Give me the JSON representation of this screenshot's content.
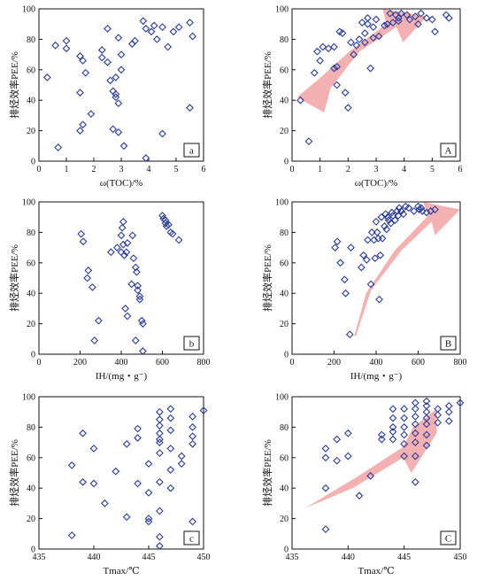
{
  "colors": {
    "marker": "#2b3d9a",
    "arrow": "#f2a3a3",
    "axis": "#111111"
  },
  "chart_data": [
    {
      "type": "scatter",
      "id": "a",
      "panel_label": "a",
      "xlabel": "ω(TOC)/%",
      "ylabel": "排烃效率PEE/%",
      "xlim": [
        0,
        6
      ],
      "ylim": [
        0,
        100
      ],
      "xticks": [
        "0",
        "1",
        "2",
        "3",
        "4",
        "5",
        "6"
      ],
      "yticks": [
        "0",
        "20",
        "40",
        "60",
        "80",
        "100"
      ],
      "arrow": false,
      "points": [
        [
          0.3,
          55
        ],
        [
          0.7,
          9
        ],
        [
          0.6,
          76
        ],
        [
          1.0,
          79
        ],
        [
          1.0,
          74
        ],
        [
          1.5,
          69
        ],
        [
          1.6,
          66
        ],
        [
          1.5,
          45
        ],
        [
          1.7,
          58
        ],
        [
          1.5,
          20
        ],
        [
          1.6,
          24
        ],
        [
          1.9,
          31
        ],
        [
          2.3,
          68
        ],
        [
          2.3,
          73
        ],
        [
          2.5,
          87
        ],
        [
          2.5,
          65
        ],
        [
          2.6,
          53
        ],
        [
          2.7,
          46
        ],
        [
          2.7,
          21
        ],
        [
          2.8,
          44
        ],
        [
          2.9,
          81
        ],
        [
          2.8,
          55
        ],
        [
          2.8,
          42
        ],
        [
          2.9,
          19
        ],
        [
          2.9,
          38
        ],
        [
          3.0,
          70
        ],
        [
          3.0,
          60
        ],
        [
          3.1,
          10
        ],
        [
          3.4,
          77
        ],
        [
          3.5,
          79
        ],
        [
          3.8,
          92
        ],
        [
          3.9,
          87
        ],
        [
          3.9,
          2
        ],
        [
          4.1,
          85
        ],
        [
          4.2,
          89
        ],
        [
          4.3,
          80
        ],
        [
          4.5,
          88
        ],
        [
          4.5,
          18
        ],
        [
          4.7,
          75
        ],
        [
          4.9,
          85
        ],
        [
          5.1,
          88
        ],
        [
          5.5,
          91
        ],
        [
          5.5,
          35
        ],
        [
          5.6,
          82
        ]
      ]
    },
    {
      "type": "scatter",
      "id": "A",
      "panel_label": "A",
      "xlabel": "ω(TOC)/%",
      "ylabel": "排烃效率PEE/%",
      "xlim": [
        0,
        6
      ],
      "ylim": [
        0,
        100
      ],
      "xticks": [
        "0",
        "1",
        "2",
        "3",
        "4",
        "5",
        "6"
      ],
      "yticks": [
        "0",
        "20",
        "40",
        "60",
        "80",
        "100"
      ],
      "arrow": true,
      "points": [
        [
          0.3,
          40
        ],
        [
          0.6,
          13
        ],
        [
          0.8,
          58
        ],
        [
          0.9,
          72
        ],
        [
          1.0,
          66
        ],
        [
          1.1,
          75
        ],
        [
          1.3,
          74
        ],
        [
          1.5,
          61
        ],
        [
          1.5,
          75
        ],
        [
          1.6,
          62
        ],
        [
          1.6,
          50
        ],
        [
          1.7,
          85
        ],
        [
          1.8,
          84
        ],
        [
          1.9,
          45
        ],
        [
          2.0,
          35
        ],
        [
          2.1,
          78
        ],
        [
          2.2,
          70
        ],
        [
          2.3,
          76
        ],
        [
          2.4,
          80
        ],
        [
          2.5,
          91
        ],
        [
          2.6,
          84
        ],
        [
          2.6,
          78
        ],
        [
          2.7,
          94
        ],
        [
          2.7,
          90
        ],
        [
          2.8,
          61
        ],
        [
          2.9,
          88
        ],
        [
          2.9,
          81
        ],
        [
          3.0,
          93
        ],
        [
          3.1,
          82
        ],
        [
          3.3,
          89
        ],
        [
          3.4,
          90
        ],
        [
          3.5,
          97
        ],
        [
          3.6,
          91
        ],
        [
          3.7,
          96
        ],
        [
          3.8,
          94
        ],
        [
          3.8,
          92
        ],
        [
          3.9,
          97
        ],
        [
          4.1,
          96
        ],
        [
          4.2,
          93
        ],
        [
          4.4,
          95
        ],
        [
          4.5,
          90
        ],
        [
          4.6,
          97
        ],
        [
          4.8,
          94
        ],
        [
          5.0,
          93
        ],
        [
          5.1,
          85
        ],
        [
          5.5,
          96
        ],
        [
          5.6,
          94
        ]
      ]
    },
    {
      "type": "scatter",
      "id": "b",
      "panel_label": "b",
      "xlabel": "IH/(mg・g⁻)",
      "ylabel": "排烃效率PEE/%",
      "xlim": [
        0,
        800
      ],
      "ylim": [
        0,
        100
      ],
      "xticks": [
        "0",
        "200",
        "400",
        "600",
        "800"
      ],
      "yticks": [
        "0",
        "20",
        "40",
        "60",
        "80",
        "100"
      ],
      "arrow": false,
      "points": [
        [
          205,
          79
        ],
        [
          215,
          74
        ],
        [
          235,
          50
        ],
        [
          240,
          55
        ],
        [
          260,
          44
        ],
        [
          270,
          9
        ],
        [
          290,
          22
        ],
        [
          350,
          67
        ],
        [
          380,
          70
        ],
        [
          400,
          67
        ],
        [
          400,
          78
        ],
        [
          405,
          83
        ],
        [
          410,
          87
        ],
        [
          410,
          72
        ],
        [
          415,
          65
        ],
        [
          420,
          30
        ],
        [
          425,
          67
        ],
        [
          430,
          73
        ],
        [
          430,
          25
        ],
        [
          450,
          46
        ],
        [
          455,
          78
        ],
        [
          460,
          63
        ],
        [
          470,
          57
        ],
        [
          470,
          9
        ],
        [
          475,
          54
        ],
        [
          480,
          45
        ],
        [
          480,
          42
        ],
        [
          490,
          38
        ],
        [
          490,
          36
        ],
        [
          500,
          22
        ],
        [
          505,
          20
        ],
        [
          505,
          2
        ],
        [
          600,
          91
        ],
        [
          605,
          89
        ],
        [
          615,
          88
        ],
        [
          615,
          86
        ],
        [
          620,
          84
        ],
        [
          630,
          85
        ],
        [
          640,
          80
        ],
        [
          650,
          79
        ],
        [
          680,
          75
        ]
      ]
    },
    {
      "type": "scatter",
      "id": "B",
      "panel_label": "B",
      "xlabel": "IH/(mg・g⁻)",
      "ylabel": "排烃效率PEE/%",
      "xlim": [
        0,
        800
      ],
      "ylim": [
        0,
        100
      ],
      "xticks": [
        "0",
        "200",
        "400",
        "600",
        "800"
      ],
      "yticks": [
        "0",
        "20",
        "40",
        "60",
        "80",
        "100"
      ],
      "arrow": true,
      "points": [
        [
          205,
          70
        ],
        [
          215,
          74
        ],
        [
          230,
          60
        ],
        [
          250,
          49
        ],
        [
          255,
          40
        ],
        [
          275,
          13
        ],
        [
          280,
          70
        ],
        [
          330,
          57
        ],
        [
          340,
          65
        ],
        [
          355,
          62
        ],
        [
          360,
          75
        ],
        [
          375,
          46
        ],
        [
          380,
          80
        ],
        [
          390,
          75
        ],
        [
          395,
          63
        ],
        [
          400,
          87
        ],
        [
          405,
          80
        ],
        [
          410,
          76
        ],
        [
          415,
          36
        ],
        [
          420,
          65
        ],
        [
          425,
          90
        ],
        [
          430,
          76
        ],
        [
          440,
          84
        ],
        [
          445,
          92
        ],
        [
          450,
          82
        ],
        [
          455,
          90
        ],
        [
          460,
          88
        ],
        [
          470,
          86
        ],
        [
          475,
          93
        ],
        [
          480,
          91
        ],
        [
          490,
          88
        ],
        [
          500,
          94
        ],
        [
          505,
          91
        ],
        [
          510,
          96
        ],
        [
          520,
          94
        ],
        [
          530,
          92
        ],
        [
          540,
          97
        ],
        [
          555,
          96
        ],
        [
          580,
          94
        ],
        [
          600,
          97
        ],
        [
          605,
          95
        ],
        [
          615,
          96
        ],
        [
          620,
          94
        ],
        [
          640,
          93
        ],
        [
          660,
          94
        ],
        [
          680,
          95
        ]
      ]
    },
    {
      "type": "scatter",
      "id": "c",
      "panel_label": "c",
      "xlabel": "Tmax/℃",
      "ylabel": "排烃效率PEE/%",
      "xlim": [
        435,
        450
      ],
      "ylim": [
        0,
        100
      ],
      "xticks": [
        "435",
        "440",
        "445",
        "450"
      ],
      "yticks": [
        "0",
        "20",
        "40",
        "60",
        "80",
        "100"
      ],
      "arrow": false,
      "points": [
        [
          438,
          9
        ],
        [
          438,
          55
        ],
        [
          439,
          44
        ],
        [
          439,
          76
        ],
        [
          440,
          43
        ],
        [
          440,
          66
        ],
        [
          441,
          30
        ],
        [
          442,
          51
        ],
        [
          443,
          21
        ],
        [
          443,
          69
        ],
        [
          444,
          43
        ],
        [
          444,
          73
        ],
        [
          444,
          79
        ],
        [
          445,
          37
        ],
        [
          445,
          56
        ],
        [
          445,
          20
        ],
        [
          445,
          18
        ],
        [
          446,
          72
        ],
        [
          446,
          70
        ],
        [
          446,
          63
        ],
        [
          446,
          8
        ],
        [
          446,
          90
        ],
        [
          446,
          85
        ],
        [
          446,
          81
        ],
        [
          446,
          76
        ],
        [
          446,
          44
        ],
        [
          446,
          25
        ],
        [
          446,
          2
        ],
        [
          447,
          92
        ],
        [
          447,
          86
        ],
        [
          447,
          78
        ],
        [
          447,
          66
        ],
        [
          447,
          52
        ],
        [
          447,
          40
        ],
        [
          448,
          61
        ],
        [
          448,
          56
        ],
        [
          449,
          87
        ],
        [
          449,
          80
        ],
        [
          449,
          74
        ],
        [
          449,
          69
        ],
        [
          449,
          18
        ],
        [
          450,
          91
        ]
      ]
    },
    {
      "type": "scatter",
      "id": "C",
      "panel_label": "C",
      "xlabel": "Tmax/℃",
      "ylabel": "排烃效率PEE/%",
      "xlim": [
        435,
        450
      ],
      "ylim": [
        0,
        100
      ],
      "xticks": [
        "435",
        "440",
        "445",
        "450"
      ],
      "yticks": [
        "0",
        "20",
        "40",
        "60",
        "80",
        "100"
      ],
      "arrow": true,
      "points": [
        [
          438,
          13
        ],
        [
          438,
          40
        ],
        [
          438,
          60
        ],
        [
          438,
          66
        ],
        [
          439,
          58
        ],
        [
          439,
          72
        ],
        [
          440,
          61
        ],
        [
          440,
          76
        ],
        [
          441,
          35
        ],
        [
          442,
          48
        ],
        [
          443,
          75
        ],
        [
          443,
          72
        ],
        [
          444,
          92
        ],
        [
          444,
          86
        ],
        [
          444,
          80
        ],
        [
          444,
          77
        ],
        [
          444,
          72
        ],
        [
          445,
          92
        ],
        [
          445,
          86
        ],
        [
          445,
          80
        ],
        [
          445,
          75
        ],
        [
          445,
          69
        ],
        [
          445,
          61
        ],
        [
          446,
          96
        ],
        [
          446,
          92
        ],
        [
          446,
          87
        ],
        [
          446,
          82
        ],
        [
          446,
          76
        ],
        [
          446,
          70
        ],
        [
          446,
          61
        ],
        [
          446,
          44
        ],
        [
          447,
          97
        ],
        [
          447,
          94
        ],
        [
          447,
          90
        ],
        [
          447,
          86
        ],
        [
          447,
          82
        ],
        [
          447,
          75
        ],
        [
          447,
          68
        ],
        [
          448,
          92
        ],
        [
          448,
          88
        ],
        [
          448,
          83
        ],
        [
          449,
          94
        ],
        [
          449,
          90
        ],
        [
          449,
          84
        ],
        [
          450,
          96
        ]
      ]
    }
  ]
}
